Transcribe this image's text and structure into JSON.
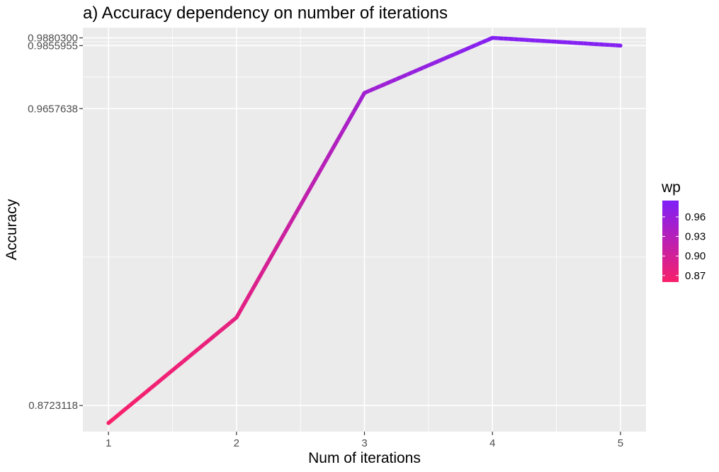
{
  "chart_data": {
    "type": "line",
    "title": "a) Accuracy dependency on number of iterations",
    "xlabel": "Num of iterations",
    "ylabel": "Accuracy",
    "x": [
      1,
      2,
      3,
      4,
      5
    ],
    "values": [
      0.8668,
      0.9,
      0.9707,
      0.98803,
      0.9855955
    ],
    "color_values": [
      0.86,
      0.88,
      0.95,
      0.98,
      0.98
    ],
    "xticks": [
      "1",
      "2",
      "3",
      "4",
      "5"
    ],
    "yticks": [
      {
        "value": 0.8723118,
        "label": "0.8723118"
      },
      {
        "value": 0.9657638,
        "label": "0.9657638"
      },
      {
        "value": 0.9855955,
        "label": "0.9855955"
      },
      {
        "value": 0.98803,
        "label": "0.9880300"
      }
    ],
    "xlim": [
      0.8,
      5.2
    ],
    "ylim": [
      0.8641,
      0.99125
    ],
    "grid": true,
    "legend": {
      "title": "wp",
      "position": "right",
      "type": "colorbar",
      "range": [
        0.86,
        0.985
      ],
      "ticks": [
        {
          "value": 0.87,
          "label": "0.87"
        },
        {
          "value": 0.9,
          "label": "0.90"
        },
        {
          "value": 0.93,
          "label": "0.93"
        },
        {
          "value": 0.96,
          "label": "0.96"
        }
      ],
      "low_color": "#F8206A",
      "high_color": "#7F20F8"
    },
    "colors": {
      "panel_background": "#EBEBEB",
      "grid_major": "#FFFFFF",
      "tick_text": "#4D4D4D",
      "tick_mark": "#333333"
    }
  }
}
